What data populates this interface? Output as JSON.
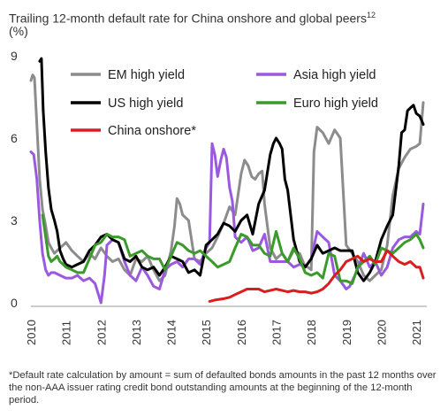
{
  "title": "Trailing 12-month default rate for China onshore and global peers",
  "title_sup": "12",
  "unit_label": "(%)",
  "footnote": "*Default rate calculation by amount = sum of defaulted bonds amounts in the past 12 months over the non-AAA issuer rating credit bond outstanding amounts at the beginning of the 12-month period.",
  "chart_data": {
    "type": "line",
    "title": "Trailing 12-month default rate for China onshore and global peers",
    "ylabel": "(%)",
    "xlabel": "",
    "ylim": [
      0,
      9
    ],
    "xlim": [
      2010,
      2021.3
    ],
    "yticks": [
      0,
      3,
      6,
      9
    ],
    "xticks": [
      "2010",
      "2011",
      "2012",
      "2013",
      "2014",
      "2015",
      "2016",
      "2017",
      "2018",
      "2019",
      "2020",
      "2021"
    ],
    "grid": false,
    "legend_position": "top",
    "series": [
      {
        "name": "EM high yield",
        "color": "#8c8c8c",
        "x": [
          2010.0,
          2010.05,
          2010.1,
          2010.17,
          2010.25,
          2010.33,
          2010.42,
          2010.5,
          2010.58,
          2010.67,
          2010.75,
          2010.83,
          2010.92,
          2011.0,
          2011.17,
          2011.33,
          2011.5,
          2011.67,
          2011.83,
          2012.0,
          2012.17,
          2012.33,
          2012.5,
          2012.67,
          2012.83,
          2013.0,
          2013.17,
          2013.33,
          2013.5,
          2013.67,
          2013.83,
          2014.0,
          2014.1,
          2014.17,
          2014.25,
          2014.33,
          2014.5,
          2014.67,
          2014.83,
          2015.0,
          2015.17,
          2015.33,
          2015.5,
          2015.67,
          2015.83,
          2016.0,
          2016.1,
          2016.2,
          2016.3,
          2016.4,
          2016.5,
          2016.6,
          2016.67,
          2016.83,
          2017.0,
          2017.17,
          2017.33,
          2017.5,
          2017.67,
          2017.8,
          2017.9,
          2018.0,
          2018.08,
          2018.17,
          2018.33,
          2018.5,
          2018.67,
          2018.83,
          2019.0,
          2019.17,
          2019.33,
          2019.5,
          2019.67,
          2019.83,
          2020.0,
          2020.17,
          2020.33,
          2020.5,
          2020.67,
          2020.83,
          2021.0,
          2021.1,
          2021.2
        ],
        "values": [
          8.1,
          8.3,
          8.2,
          6.5,
          4.5,
          3.4,
          2.8,
          2.2,
          2.0,
          1.8,
          1.9,
          2.0,
          2.1,
          2.2,
          1.9,
          1.7,
          1.5,
          1.8,
          1.6,
          2.0,
          1.7,
          1.5,
          1.6,
          1.2,
          1.0,
          1.6,
          1.5,
          1.7,
          1.2,
          0.8,
          1.0,
          1.9,
          2.8,
          3.8,
          3.6,
          3.2,
          3.0,
          1.6,
          1.5,
          1.8,
          2.0,
          2.4,
          2.9,
          3.5,
          3.2,
          4.7,
          5.2,
          5.0,
          4.6,
          4.5,
          4.7,
          4.8,
          3.6,
          2.0,
          1.6,
          1.8,
          1.5,
          1.9,
          1.8,
          1.4,
          1.3,
          1.2,
          5.5,
          6.4,
          6.2,
          5.8,
          6.3,
          6.0,
          2.1,
          1.8,
          1.5,
          1.0,
          0.8,
          1.0,
          1.2,
          2.1,
          3.9,
          4.9,
          5.3,
          5.6,
          5.7,
          5.8,
          7.3
        ]
      },
      {
        "name": "Asia high yield",
        "color": "#9b59e0",
        "x": [
          2010.0,
          2010.08,
          2010.17,
          2010.25,
          2010.33,
          2010.42,
          2010.5,
          2010.58,
          2010.67,
          2010.83,
          2011.0,
          2011.17,
          2011.33,
          2011.5,
          2011.67,
          2011.83,
          2012.0,
          2012.1,
          2012.17,
          2012.33,
          2012.5,
          2012.67,
          2012.83,
          2013.0,
          2013.17,
          2013.33,
          2013.5,
          2013.67,
          2013.83,
          2014.0,
          2014.17,
          2014.33,
          2014.5,
          2014.67,
          2014.83,
          2015.0,
          2015.1,
          2015.17,
          2015.25,
          2015.33,
          2015.42,
          2015.5,
          2015.58,
          2015.67,
          2015.75,
          2015.83,
          2016.0,
          2016.17,
          2016.33,
          2016.5,
          2016.67,
          2016.83,
          2017.0,
          2017.17,
          2017.33,
          2017.5,
          2017.67,
          2017.83,
          2018.0,
          2018.17,
          2018.33,
          2018.5,
          2018.67,
          2018.83,
          2019.0,
          2019.1,
          2019.25,
          2019.5,
          2019.67,
          2019.83,
          2020.0,
          2020.17,
          2020.33,
          2020.5,
          2020.67,
          2020.83,
          2021.0,
          2021.1,
          2021.2
        ],
        "values": [
          5.5,
          5.4,
          4.5,
          3.0,
          1.8,
          1.2,
          1.0,
          1.1,
          1.1,
          1.0,
          0.9,
          0.9,
          1.0,
          0.8,
          0.9,
          0.7,
          0.0,
          1.0,
          2.1,
          2.3,
          2.2,
          1.5,
          1.0,
          0.8,
          1.3,
          1.0,
          0.6,
          0.5,
          1.2,
          1.4,
          1.5,
          1.3,
          1.6,
          1.6,
          1.4,
          2.0,
          2.2,
          5.8,
          5.4,
          4.6,
          5.2,
          5.6,
          5.3,
          4.2,
          3.7,
          2.4,
          2.2,
          2.4,
          1.9,
          2.0,
          2.5,
          1.5,
          1.5,
          1.5,
          1.5,
          1.3,
          1.4,
          1.3,
          1.6,
          2.6,
          2.4,
          2.2,
          1.0,
          0.8,
          0.5,
          0.6,
          1.0,
          1.8,
          1.3,
          1.5,
          1.0,
          1.3,
          2.0,
          2.3,
          2.4,
          2.4,
          2.6,
          2.5,
          3.6
        ]
      },
      {
        "name": "US high yield",
        "color": "#000000",
        "x": [
          2010.25,
          2010.3,
          2010.35,
          2010.42,
          2010.5,
          2010.58,
          2010.67,
          2010.75,
          2010.83,
          2010.92,
          2011.0,
          2011.17,
          2011.33,
          2011.5,
          2011.67,
          2011.83,
          2012.0,
          2012.17,
          2012.33,
          2012.5,
          2012.67,
          2012.83,
          2013.0,
          2013.17,
          2013.33,
          2013.5,
          2013.67,
          2013.83,
          2014.0,
          2014.17,
          2014.33,
          2014.5,
          2014.67,
          2014.83,
          2015.0,
          2015.17,
          2015.33,
          2015.5,
          2015.67,
          2015.83,
          2016.0,
          2016.17,
          2016.33,
          2016.5,
          2016.67,
          2016.83,
          2016.92,
          2017.0,
          2017.1,
          2017.17,
          2017.25,
          2017.33,
          2017.5,
          2017.67,
          2017.83,
          2018.0,
          2018.17,
          2018.33,
          2018.5,
          2018.67,
          2018.83,
          2019.0,
          2019.17,
          2019.33,
          2019.5,
          2019.67,
          2019.83,
          2020.0,
          2020.17,
          2020.33,
          2020.5,
          2020.58,
          2020.67,
          2020.75,
          2020.83,
          2020.92,
          2021.0,
          2021.1,
          2021.2
        ],
        "values": [
          8.8,
          8.9,
          7.0,
          5.5,
          4.2,
          3.4,
          3.0,
          2.6,
          1.9,
          1.6,
          1.4,
          1.3,
          1.4,
          1.5,
          1.9,
          2.1,
          2.4,
          2.5,
          2.3,
          2.2,
          1.6,
          1.5,
          1.7,
          1.3,
          1.2,
          1.3,
          1.0,
          1.3,
          1.7,
          1.6,
          1.5,
          1.1,
          1.2,
          1.0,
          2.1,
          2.3,
          2.5,
          2.9,
          2.8,
          2.6,
          3.0,
          3.2,
          2.5,
          3.6,
          4.1,
          5.4,
          5.8,
          6.0,
          5.8,
          5.6,
          4.5,
          4.1,
          2.3,
          1.5,
          1.3,
          1.6,
          2.1,
          1.8,
          1.9,
          2.0,
          1.9,
          1.9,
          1.9,
          1.1,
          0.8,
          1.1,
          1.5,
          2.3,
          2.8,
          3.2,
          5.0,
          6.2,
          6.3,
          7.0,
          7.1,
          7.2,
          6.9,
          6.8,
          6.5
        ]
      },
      {
        "name": "Euro high yield",
        "color": "#3a9a2a",
        "x": [
          2010.33,
          2010.42,
          2010.5,
          2010.58,
          2010.67,
          2010.75,
          2010.83,
          2010.92,
          2011.0,
          2011.17,
          2011.33,
          2011.5,
          2011.67,
          2011.83,
          2012.0,
          2012.17,
          2012.33,
          2012.5,
          2012.67,
          2012.83,
          2013.0,
          2013.17,
          2013.33,
          2013.5,
          2013.67,
          2013.83,
          2014.0,
          2014.17,
          2014.33,
          2014.5,
          2014.67,
          2014.83,
          2015.0,
          2015.17,
          2015.33,
          2015.5,
          2015.67,
          2015.83,
          2016.0,
          2016.17,
          2016.33,
          2016.5,
          2016.67,
          2016.83,
          2017.0,
          2017.17,
          2017.33,
          2017.5,
          2017.67,
          2017.83,
          2018.0,
          2018.17,
          2018.33,
          2018.5,
          2018.67,
          2018.83,
          2019.0,
          2019.17,
          2019.33,
          2019.5,
          2019.67,
          2019.83,
          2020.0,
          2020.17,
          2020.33,
          2020.5,
          2020.67,
          2020.83,
          2021.0,
          2021.1,
          2021.2
        ],
        "values": [
          3.2,
          2.4,
          1.7,
          1.5,
          1.6,
          1.7,
          1.5,
          1.4,
          1.3,
          1.2,
          1.1,
          1.1,
          1.6,
          2.1,
          2.2,
          2.5,
          2.4,
          2.4,
          2.3,
          1.7,
          1.8,
          1.9,
          1.7,
          1.6,
          1.6,
          1.2,
          1.7,
          2.2,
          2.1,
          1.9,
          1.8,
          1.9,
          1.7,
          1.5,
          1.3,
          1.4,
          1.5,
          2.0,
          2.5,
          2.4,
          2.1,
          2.1,
          1.8,
          1.7,
          2.6,
          1.8,
          1.5,
          2.0,
          1.6,
          1.1,
          1.0,
          1.1,
          0.9,
          1.8,
          1.7,
          0.8,
          0.8,
          0.7,
          1.3,
          1.5,
          1.7,
          1.4,
          2.0,
          1.9,
          1.8,
          2.0,
          2.2,
          2.3,
          2.5,
          2.3,
          2.0
        ]
      },
      {
        "name": "China onshore*",
        "color": "#d81e1e",
        "x": [
          2015.1,
          2015.25,
          2015.5,
          2015.67,
          2015.83,
          2016.0,
          2016.17,
          2016.33,
          2016.5,
          2016.67,
          2016.83,
          2017.0,
          2017.17,
          2017.33,
          2017.5,
          2017.67,
          2017.83,
          2018.0,
          2018.17,
          2018.33,
          2018.5,
          2018.67,
          2018.83,
          2019.0,
          2019.17,
          2019.33,
          2019.5,
          2019.67,
          2019.83,
          2020.0,
          2020.17,
          2020.33,
          2020.5,
          2020.67,
          2020.83,
          2021.0,
          2021.1,
          2021.2
        ],
        "values": [
          0.05,
          0.1,
          0.15,
          0.2,
          0.3,
          0.4,
          0.5,
          0.5,
          0.5,
          0.4,
          0.45,
          0.5,
          0.45,
          0.4,
          0.45,
          0.4,
          0.4,
          0.35,
          0.4,
          0.5,
          0.7,
          1.0,
          1.2,
          1.5,
          1.6,
          1.7,
          1.5,
          1.6,
          1.5,
          1.5,
          1.9,
          1.7,
          1.5,
          1.4,
          1.5,
          1.3,
          1.3,
          0.9
        ]
      }
    ]
  }
}
